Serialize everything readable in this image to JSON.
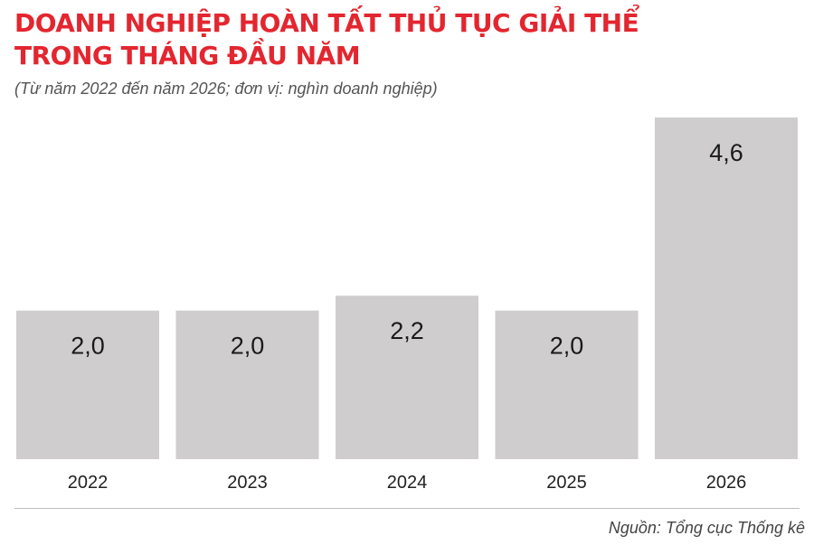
{
  "header": {
    "title_line1": "DOANH NGHIỆP HOÀN TẤT THỦ TỤC GIẢI THỂ",
    "title_line2": "TRONG THÁNG ĐẦU NĂM",
    "subtitle": "(Từ năm 2022 đến năm 2026; đơn vị: nghìn doanh nghiệp)"
  },
  "footer": {
    "source": "Nguồn: Tổng cục Thống kê"
  },
  "colors": {
    "title": "#e3262f",
    "bar": "#cfcdce",
    "text": "#1a1a1a"
  },
  "chart_data": {
    "type": "bar",
    "categories": [
      "2022",
      "2023",
      "2024",
      "2025",
      "2026"
    ],
    "values": [
      2.0,
      2.0,
      2.2,
      2.0,
      4.6
    ],
    "value_labels": [
      "2,0",
      "2,0",
      "2,2",
      "2,0",
      "4,6"
    ],
    "unit": "nghìn doanh nghiệp",
    "ylim": [
      0,
      4.6
    ],
    "grid": false,
    "legend": "none"
  }
}
